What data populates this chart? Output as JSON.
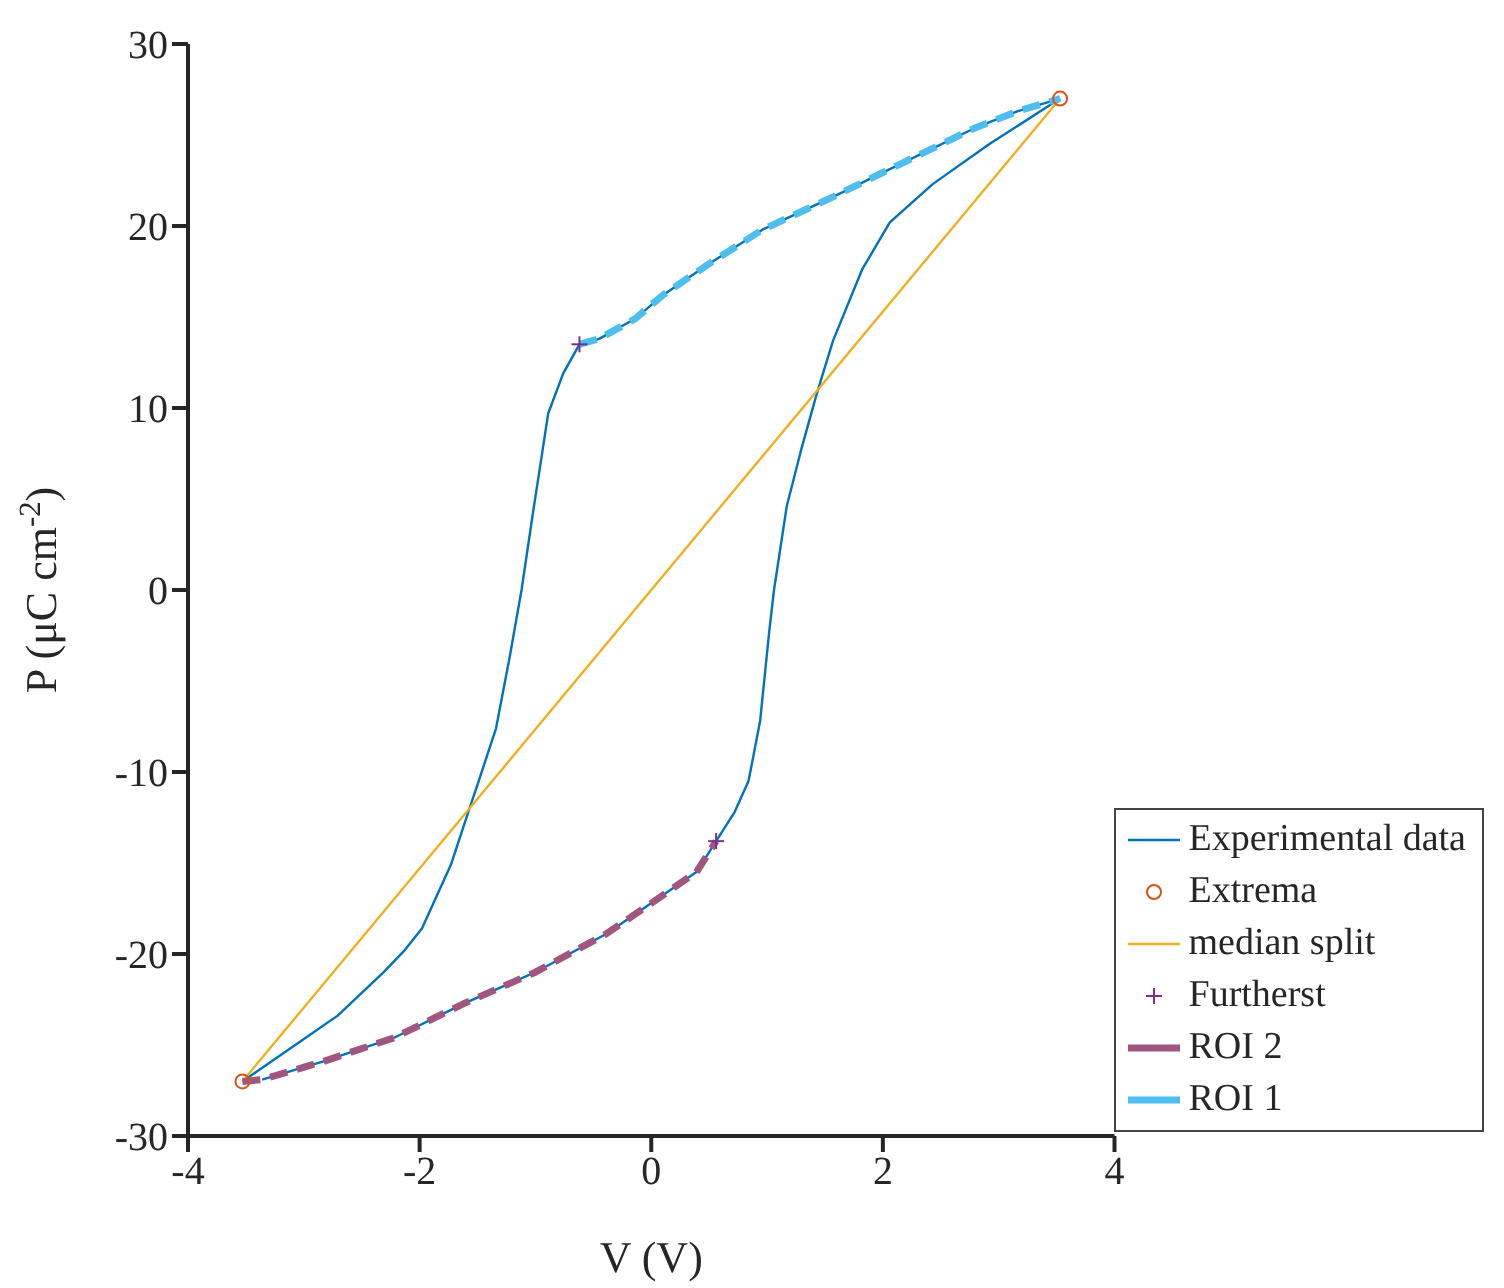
{
  "chart_data": {
    "type": "line",
    "xlabel": "V (V)",
    "ylabel": "P (μC cm$^{-2}$)",
    "xlim": [
      -4,
      4
    ],
    "xticks": [
      -4,
      -2,
      0,
      2,
      4
    ],
    "ylim": [
      -30,
      30
    ],
    "yticks": [
      -30,
      -20,
      -10,
      0,
      10,
      20,
      30
    ],
    "grid": false,
    "legend": "bottom right",
    "series": [
      {
        "name": "Experimental data",
        "type": "line",
        "color": "#0072bd",
        "line_style": "solid",
        "marker": "none",
        "x": [
          3.53,
          3.16,
          2.8,
          2.18,
          1.57,
          0.96,
          0.47,
          0.1,
          -0.14,
          -0.45,
          -0.62,
          -0.76,
          -0.89,
          -0.94,
          -1.02,
          -1.12,
          -1.22,
          -1.34,
          -1.49,
          -1.58,
          -1.73,
          -1.98,
          -2.13,
          -2.31,
          -2.71,
          -3.53
        ],
        "values": [
          27,
          26.3,
          25.4,
          23.5,
          21.6,
          19.8,
          17.8,
          16.2,
          14.9,
          13.8,
          13.5,
          11.9,
          9.7,
          7.6,
          4.3,
          0,
          -3.6,
          -7.6,
          -10.5,
          -12.2,
          -15.1,
          -18.6,
          -19.8,
          -21,
          -23.4,
          -27
        ]
      },
      {
        "type": "line",
        "color": "#0072bd",
        "line_style": "solid",
        "marker": "none",
        "x": [
          -3.36,
          -2.83,
          -2.22,
          -1.61,
          -1.0,
          -0.39,
          -0.02,
          0.39,
          0.56,
          0.72,
          0.84,
          0.94,
          1.02,
          1.06,
          1.17,
          1.29,
          1.43,
          1.57,
          1.82,
          2.06,
          2.43,
          2.92,
          3.53
        ],
        "values": [
          -26.9,
          -25.9,
          -24.6,
          -22.7,
          -21,
          -18.9,
          -17.3,
          -15.5,
          -13.8,
          -12.2,
          -10.5,
          -7.2,
          -2.2,
          0,
          4.6,
          7.6,
          10.8,
          13.7,
          17.6,
          20.2,
          22.3,
          24.5,
          27
        ]
      },
      {
        "name": "Extrema",
        "type": "scatter",
        "color": "#d95319",
        "marker": "circle",
        "x": [
          -3.53,
          3.53
        ],
        "values": [
          -27,
          27
        ]
      },
      {
        "name": "median split",
        "type": "line",
        "color": "#edb120",
        "line_style": "solid",
        "marker": "none",
        "x": [
          -3.53,
          3.53
        ],
        "values": [
          -27,
          27
        ]
      },
      {
        "name": "Furtherst",
        "type": "scatter",
        "color": "#7e2f8e",
        "marker": "cross",
        "x": [
          -0.62,
          0.56
        ],
        "values": [
          13.5,
          -13.8
        ]
      },
      {
        "name": "ROI 2",
        "type": "line",
        "color": "#a2557e",
        "line_style": "dashed",
        "marker": "none",
        "x": [
          -3.53,
          -3.36,
          -2.83,
          -2.22,
          -1.61,
          -1.0,
          -0.39,
          -0.02,
          0.39,
          0.56
        ],
        "values": [
          -27,
          -26.9,
          -25.9,
          -24.6,
          -22.7,
          -21,
          -18.9,
          -17.3,
          -15.5,
          -13.8
        ]
      },
      {
        "name": "ROI 1",
        "type": "line",
        "color": "#4dbeee",
        "line_style": "dashed",
        "marker": "none",
        "x": [
          -0.62,
          -0.45,
          -0.14,
          0.1,
          0.47,
          0.96,
          1.57,
          2.18,
          2.8,
          3.16,
          3.53
        ],
        "values": [
          13.5,
          13.8,
          14.9,
          16.2,
          17.8,
          19.8,
          21.6,
          23.5,
          25.4,
          26.3,
          27
        ]
      }
    ]
  }
}
